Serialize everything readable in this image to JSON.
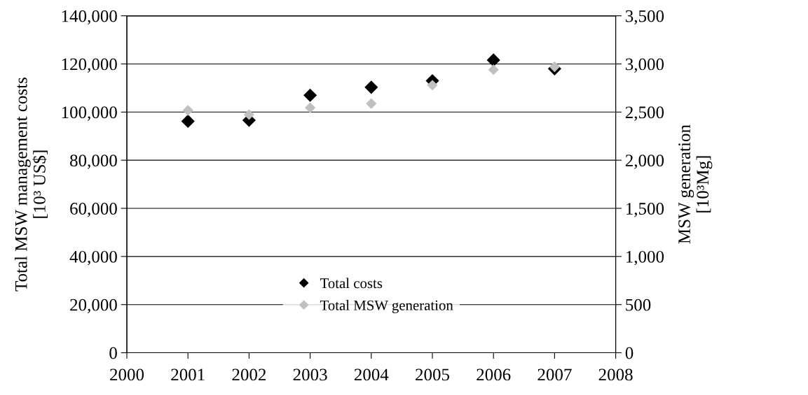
{
  "chart_data": {
    "type": "scatter",
    "ylabel": "Total MSW management costs\n[10³ US$]",
    "y2label": "MSW generation\n[10³Mg]",
    "x": [
      2001,
      2002,
      2003,
      2004,
      2005,
      2006,
      2007
    ],
    "series": [
      {
        "name": "Total costs",
        "color": "#000000",
        "values": [
          96200,
          96600,
          107000,
          110300,
          113000,
          121600,
          118000
        ]
      },
      {
        "name": "Total MSW generation",
        "color": "#c0c0c0",
        "axis": "y2",
        "values": [
          2518,
          2473,
          2545,
          2588,
          2780,
          2940,
          2970
        ]
      }
    ],
    "xlim": [
      2000,
      2008
    ],
    "xticks": [
      2000,
      2001,
      2002,
      2003,
      2004,
      2005,
      2006,
      2007,
      2008
    ],
    "ylim": [
      0,
      140000
    ],
    "yticks": [
      {
        "value": 0,
        "label": "0"
      },
      {
        "value": 20000,
        "label": "20,000"
      },
      {
        "value": 40000,
        "label": "40,000"
      },
      {
        "value": 60000,
        "label": "60,000"
      },
      {
        "value": 80000,
        "label": "80,000"
      },
      {
        "value": 100000,
        "label": "100,000"
      },
      {
        "value": 120000,
        "label": "120,000"
      },
      {
        "value": 140000,
        "label": "140,000"
      }
    ],
    "y2lim": [
      0,
      3500
    ],
    "y2ticks": [
      {
        "value": 0,
        "label": "0"
      },
      {
        "value": 500,
        "label": "500"
      },
      {
        "value": 1000,
        "label": "1,000"
      },
      {
        "value": 1500,
        "label": "1,500"
      },
      {
        "value": 2000,
        "label": "2,000"
      },
      {
        "value": 2500,
        "label": "2,500"
      },
      {
        "value": 3000,
        "label": "3,000"
      },
      {
        "value": 3500,
        "label": "3,500"
      }
    ],
    "grid": "y",
    "legend": "bottom",
    "marker": "diamond"
  }
}
